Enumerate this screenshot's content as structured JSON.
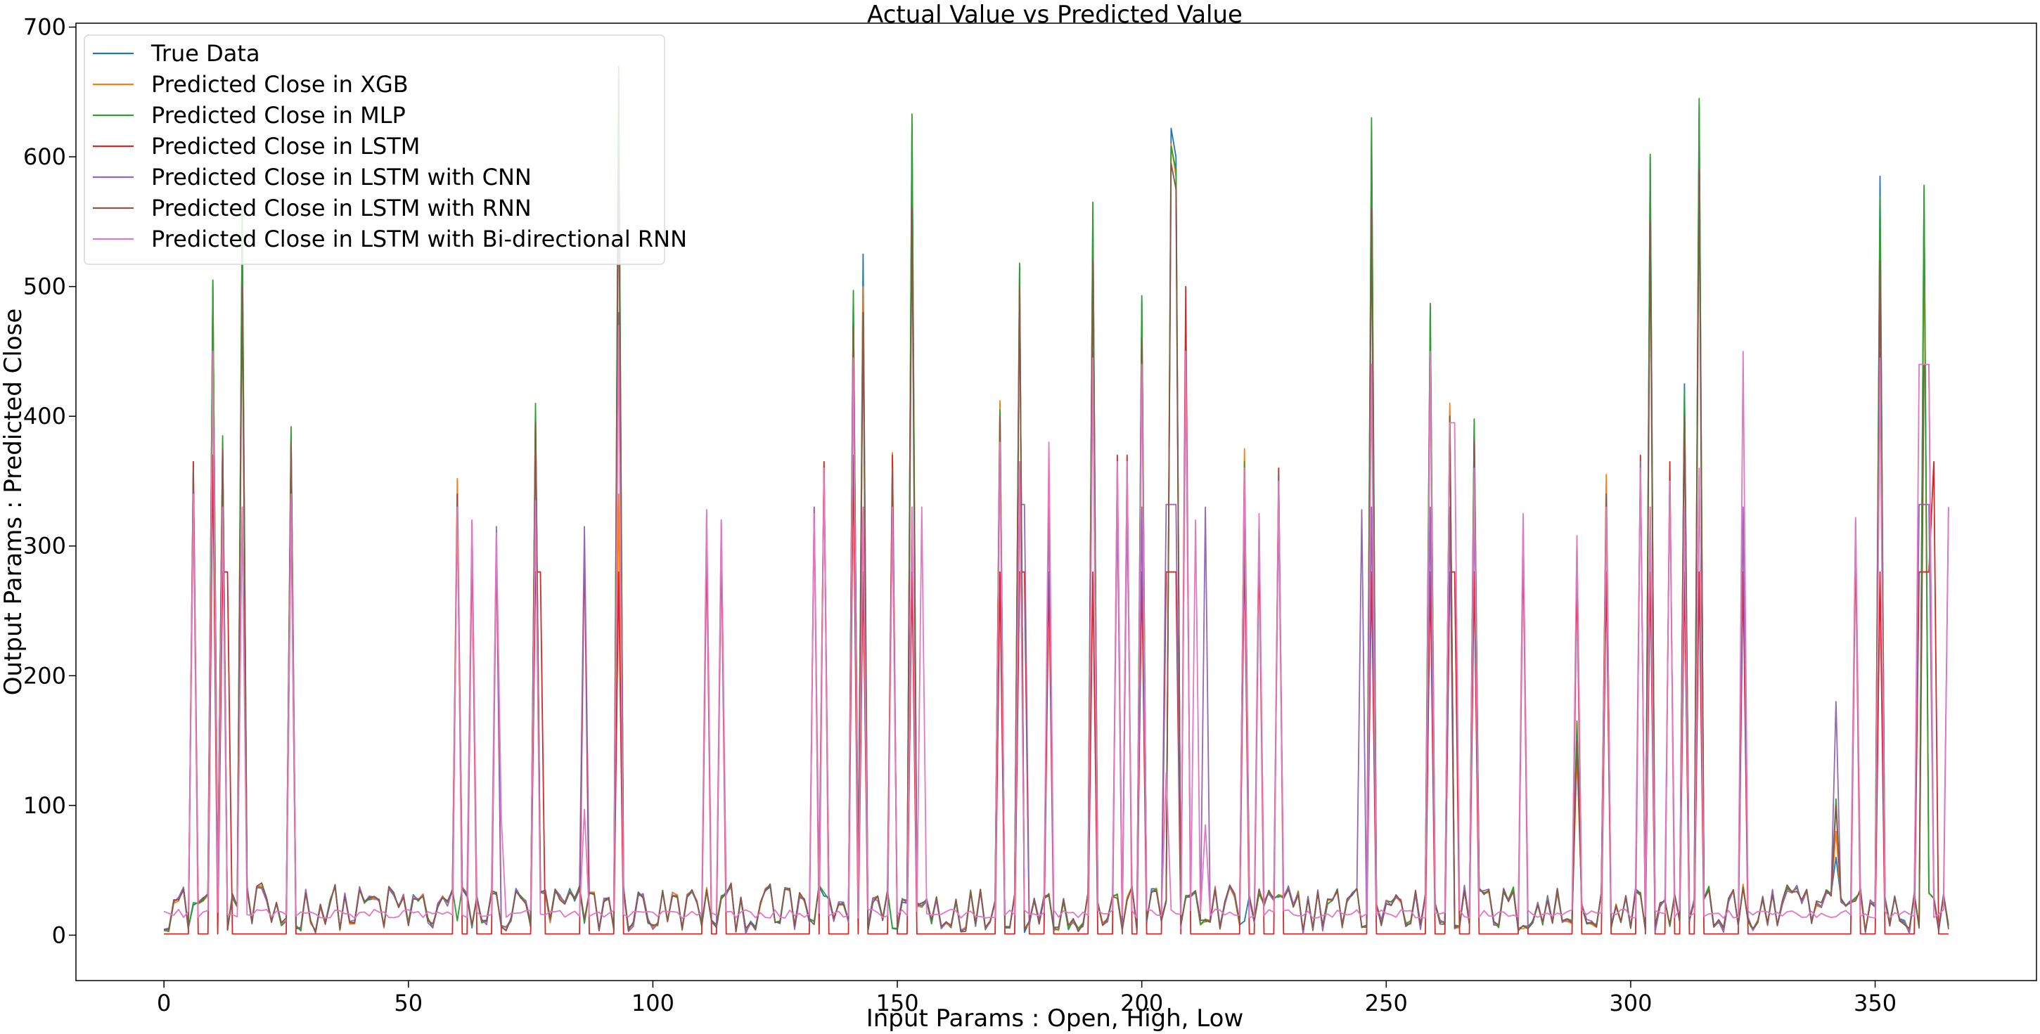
{
  "chart_data": {
    "type": "line",
    "title": "Actual Value vs Predicted Value",
    "xlabel": "Input Params : Open, High, Low",
    "ylabel": "Output Params : Predicted Close",
    "xlim": [
      -18,
      383
    ],
    "ylim": [
      -35,
      703
    ],
    "xticks": [
      0,
      50,
      100,
      150,
      200,
      250,
      300,
      350
    ],
    "yticks": [
      0,
      100,
      200,
      300,
      400,
      500,
      600,
      700
    ],
    "grid": false,
    "legend_position": "upper-left",
    "x": {
      "start": 0,
      "end": 365,
      "step": 1
    },
    "series": [
      {
        "name": "True Data",
        "color": "#1f77b4",
        "base": "low",
        "spikes": [
          [
            10,
            500
          ],
          [
            12,
            380
          ],
          [
            16,
            545
          ],
          [
            26,
            385
          ],
          [
            60,
            340
          ],
          [
            76,
            405
          ],
          [
            93,
            660
          ],
          [
            141,
            495
          ],
          [
            143,
            525
          ],
          [
            153,
            625
          ],
          [
            171,
            410
          ],
          [
            175,
            515
          ],
          [
            190,
            560
          ],
          [
            200,
            490
          ],
          [
            206,
            622
          ],
          [
            207,
            600
          ],
          [
            247,
            620
          ],
          [
            259,
            485
          ],
          [
            263,
            405
          ],
          [
            268,
            395
          ],
          [
            289,
            160
          ],
          [
            295,
            345
          ],
          [
            304,
            600
          ],
          [
            311,
            425
          ],
          [
            314,
            640
          ],
          [
            342,
            60
          ],
          [
            351,
            585
          ],
          [
            360,
            570
          ]
        ]
      },
      {
        "name": "Predicted Close in XGB",
        "color": "#ff7f0e",
        "base": "low",
        "spikes": [
          [
            6,
            365
          ],
          [
            10,
            505
          ],
          [
            12,
            375
          ],
          [
            16,
            535
          ],
          [
            26,
            380
          ],
          [
            60,
            352
          ],
          [
            76,
            400
          ],
          [
            93,
            340
          ],
          [
            135,
            365
          ],
          [
            141,
            480
          ],
          [
            143,
            500
          ],
          [
            149,
            372
          ],
          [
            153,
            600
          ],
          [
            171,
            412
          ],
          [
            175,
            510
          ],
          [
            190,
            545
          ],
          [
            200,
            470
          ],
          [
            206,
            610
          ],
          [
            207,
            585
          ],
          [
            221,
            375
          ],
          [
            247,
            600
          ],
          [
            259,
            470
          ],
          [
            263,
            410
          ],
          [
            268,
            385
          ],
          [
            289,
            140
          ],
          [
            295,
            355
          ],
          [
            304,
            580
          ],
          [
            311,
            410
          ],
          [
            314,
            620
          ],
          [
            342,
            80
          ],
          [
            351,
            560
          ],
          [
            360,
            545
          ]
        ]
      },
      {
        "name": "Predicted Close in MLP",
        "color": "#2ca02c",
        "base": "low",
        "spikes": [
          [
            10,
            505
          ],
          [
            12,
            385
          ],
          [
            16,
            560
          ],
          [
            26,
            392
          ],
          [
            76,
            410
          ],
          [
            93,
            670
          ],
          [
            141,
            497
          ],
          [
            143,
            480
          ],
          [
            153,
            633
          ],
          [
            171,
            405
          ],
          [
            175,
            518
          ],
          [
            190,
            565
          ],
          [
            200,
            493
          ],
          [
            206,
            608
          ],
          [
            207,
            590
          ],
          [
            221,
            365
          ],
          [
            247,
            630
          ],
          [
            259,
            487
          ],
          [
            263,
            400
          ],
          [
            268,
            398
          ],
          [
            289,
            165
          ],
          [
            295,
            340
          ],
          [
            304,
            602
          ],
          [
            311,
            420
          ],
          [
            314,
            645
          ],
          [
            342,
            105
          ],
          [
            351,
            570
          ],
          [
            360,
            578
          ]
        ]
      },
      {
        "name": "Predicted Close in LSTM",
        "color": "#d62728",
        "base": "zero",
        "spikes": [
          [
            6,
            365
          ],
          [
            10,
            370
          ],
          [
            12,
            280
          ],
          [
            13,
            280
          ],
          [
            26,
            330
          ],
          [
            60,
            340
          ],
          [
            63,
            300
          ],
          [
            68,
            300
          ],
          [
            76,
            280
          ],
          [
            77,
            280
          ],
          [
            86,
            300
          ],
          [
            93,
            280
          ],
          [
            111,
            300
          ],
          [
            114,
            300
          ],
          [
            133,
            330
          ],
          [
            135,
            365
          ],
          [
            141,
            370
          ],
          [
            143,
            280
          ],
          [
            149,
            370
          ],
          [
            153,
            280
          ],
          [
            171,
            280
          ],
          [
            175,
            280
          ],
          [
            176,
            280
          ],
          [
            181,
            280
          ],
          [
            190,
            280
          ],
          [
            195,
            370
          ],
          [
            197,
            370
          ],
          [
            200,
            280
          ],
          [
            205,
            280
          ],
          [
            206,
            280
          ],
          [
            207,
            280
          ],
          [
            209,
            500
          ],
          [
            221,
            300
          ],
          [
            224,
            300
          ],
          [
            228,
            360
          ],
          [
            247,
            280
          ],
          [
            259,
            280
          ],
          [
            263,
            280
          ],
          [
            264,
            280
          ],
          [
            268,
            280
          ],
          [
            278,
            300
          ],
          [
            289,
            280
          ],
          [
            295,
            280
          ],
          [
            302,
            370
          ],
          [
            304,
            280
          ],
          [
            308,
            365
          ],
          [
            311,
            280
          ],
          [
            314,
            280
          ],
          [
            323,
            280
          ],
          [
            346,
            300
          ],
          [
            351,
            280
          ],
          [
            359,
            280
          ],
          [
            360,
            280
          ],
          [
            361,
            280
          ],
          [
            362,
            365
          ]
        ]
      },
      {
        "name": "Predicted Close in LSTM with CNN",
        "color": "#9467bd",
        "base": "mid",
        "spikes": [
          [
            6,
            335
          ],
          [
            10,
            450
          ],
          [
            12,
            330
          ],
          [
            16,
            330
          ],
          [
            26,
            335
          ],
          [
            60,
            330
          ],
          [
            63,
            320
          ],
          [
            68,
            315
          ],
          [
            76,
            330
          ],
          [
            86,
            315
          ],
          [
            93,
            480
          ],
          [
            111,
            325
          ],
          [
            114,
            320
          ],
          [
            133,
            330
          ],
          [
            135,
            355
          ],
          [
            141,
            450
          ],
          [
            143,
            330
          ],
          [
            149,
            330
          ],
          [
            153,
            330
          ],
          [
            171,
            380
          ],
          [
            175,
            332
          ],
          [
            176,
            332
          ],
          [
            181,
            330
          ],
          [
            190,
            450
          ],
          [
            195,
            330
          ],
          [
            197,
            330
          ],
          [
            200,
            330
          ],
          [
            205,
            332
          ],
          [
            206,
            332
          ],
          [
            207,
            332
          ],
          [
            209,
            440
          ],
          [
            213,
            330
          ],
          [
            221,
            330
          ],
          [
            224,
            320
          ],
          [
            228,
            330
          ],
          [
            245,
            328
          ],
          [
            247,
            330
          ],
          [
            259,
            330
          ],
          [
            263,
            330
          ],
          [
            268,
            330
          ],
          [
            278,
            320
          ],
          [
            289,
            305
          ],
          [
            295,
            330
          ],
          [
            302,
            365
          ],
          [
            304,
            330
          ],
          [
            308,
            350
          ],
          [
            311,
            330
          ],
          [
            314,
            355
          ],
          [
            323,
            330
          ],
          [
            342,
            180
          ],
          [
            346,
            320
          ],
          [
            351,
            450
          ],
          [
            359,
            332
          ],
          [
            360,
            332
          ],
          [
            361,
            332
          ],
          [
            365,
            330
          ]
        ]
      },
      {
        "name": "Predicted Close in LSTM with RNN",
        "color": "#8c564b",
        "base": "mid",
        "spikes": [
          [
            6,
            360
          ],
          [
            10,
            440
          ],
          [
            12,
            375
          ],
          [
            16,
            500
          ],
          [
            26,
            380
          ],
          [
            60,
            335
          ],
          [
            76,
            395
          ],
          [
            93,
            600
          ],
          [
            135,
            360
          ],
          [
            141,
            470
          ],
          [
            143,
            480
          ],
          [
            149,
            360
          ],
          [
            153,
            560
          ],
          [
            171,
            400
          ],
          [
            175,
            500
          ],
          [
            190,
            520
          ],
          [
            200,
            460
          ],
          [
            206,
            595
          ],
          [
            207,
            575
          ],
          [
            221,
            360
          ],
          [
            228,
            355
          ],
          [
            247,
            560
          ],
          [
            259,
            450
          ],
          [
            263,
            400
          ],
          [
            268,
            380
          ],
          [
            289,
            150
          ],
          [
            295,
            340
          ],
          [
            304,
            550
          ],
          [
            311,
            400
          ],
          [
            314,
            590
          ],
          [
            342,
            100
          ],
          [
            351,
            520
          ],
          [
            360,
            440
          ],
          [
            361,
            440
          ]
        ]
      },
      {
        "name": "Predicted Close in LSTM with Bi-directional RNN",
        "color": "#e377c2",
        "base": "flat",
        "spikes": [
          [
            6,
            340
          ],
          [
            10,
            450
          ],
          [
            12,
            330
          ],
          [
            16,
            330
          ],
          [
            26,
            340
          ],
          [
            60,
            330
          ],
          [
            63,
            320
          ],
          [
            68,
            310
          ],
          [
            69,
            90
          ],
          [
            76,
            335
          ],
          [
            86,
            97
          ],
          [
            93,
            470
          ],
          [
            111,
            328
          ],
          [
            114,
            320
          ],
          [
            133,
            325
          ],
          [
            135,
            360
          ],
          [
            141,
            445
          ],
          [
            143,
            330
          ],
          [
            149,
            330
          ],
          [
            153,
            330
          ],
          [
            155,
            330
          ],
          [
            171,
            380
          ],
          [
            175,
            365
          ],
          [
            181,
            380
          ],
          [
            190,
            445
          ],
          [
            195,
            365
          ],
          [
            197,
            365
          ],
          [
            200,
            440
          ],
          [
            205,
            125
          ],
          [
            209,
            450
          ],
          [
            211,
            320
          ],
          [
            213,
            85
          ],
          [
            221,
            360
          ],
          [
            224,
            325
          ],
          [
            228,
            350
          ],
          [
            247,
            440
          ],
          [
            259,
            450
          ],
          [
            263,
            395
          ],
          [
            264,
            395
          ],
          [
            268,
            360
          ],
          [
            278,
            325
          ],
          [
            289,
            308
          ],
          [
            295,
            330
          ],
          [
            302,
            360
          ],
          [
            304,
            330
          ],
          [
            308,
            350
          ],
          [
            311,
            330
          ],
          [
            314,
            360
          ],
          [
            323,
            450
          ],
          [
            346,
            322
          ],
          [
            351,
            445
          ],
          [
            359,
            440
          ],
          [
            360,
            440
          ],
          [
            361,
            440
          ],
          [
            365,
            330
          ]
        ]
      }
    ]
  }
}
